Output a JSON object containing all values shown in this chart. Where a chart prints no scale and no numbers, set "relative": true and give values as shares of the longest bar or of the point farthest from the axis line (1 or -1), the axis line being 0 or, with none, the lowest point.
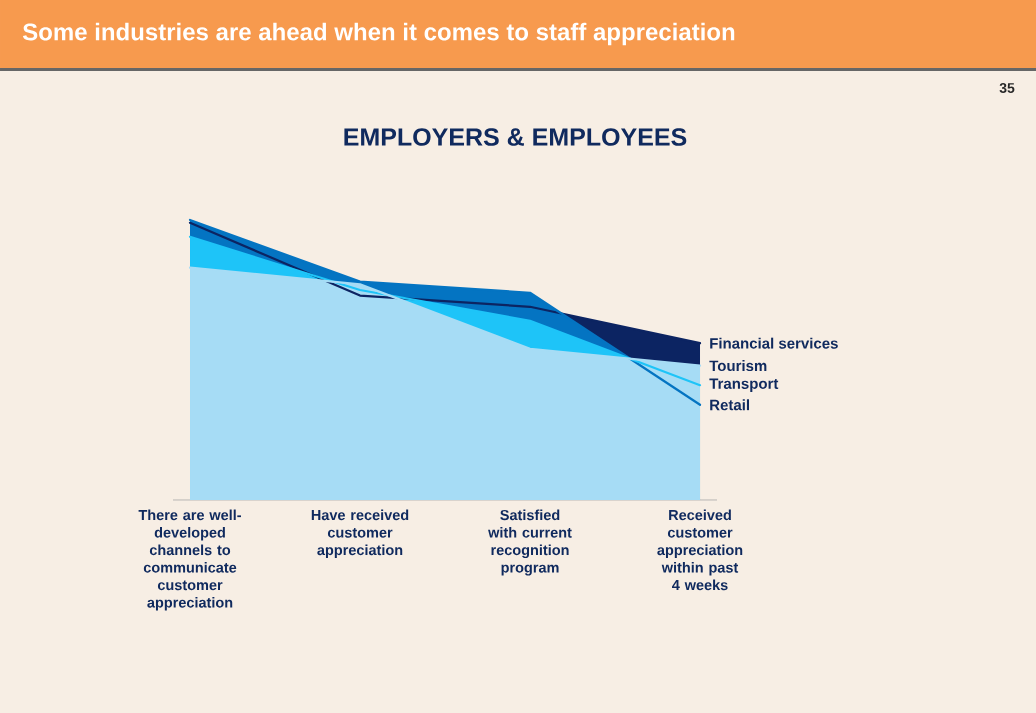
{
  "chart_data": {
    "type": "area",
    "title": "Some industries are ahead when it comes to staff appreciation",
    "subtitle": "EMPLOYERS & EMPLOYEES",
    "categories": [
      "There are well-developed channels to communicate customer appreciation",
      "Have received customer appreciation",
      "Satisfied with current recognition program",
      "Received customer appreciation within past 4 weeks"
    ],
    "series": [
      {
        "name": "Tourism",
        "color": "#a6dcf5",
        "values": [
          0.83,
          0.77,
          0.54,
          0.48
        ]
      },
      {
        "name": "Transport",
        "color": "#1ec4f8",
        "values": [
          0.94,
          0.75,
          0.64,
          0.41
        ]
      },
      {
        "name": "Retail",
        "color": "#0474c2",
        "values": [
          1,
          0.78,
          0.74,
          0.34
        ]
      },
      {
        "name": "Financial services",
        "color": "#0c2462",
        "values": [
          0.99,
          0.73,
          0.69,
          0.56
        ]
      }
    ],
    "relative": true,
    "annotations": [
      "35"
    ]
  }
}
